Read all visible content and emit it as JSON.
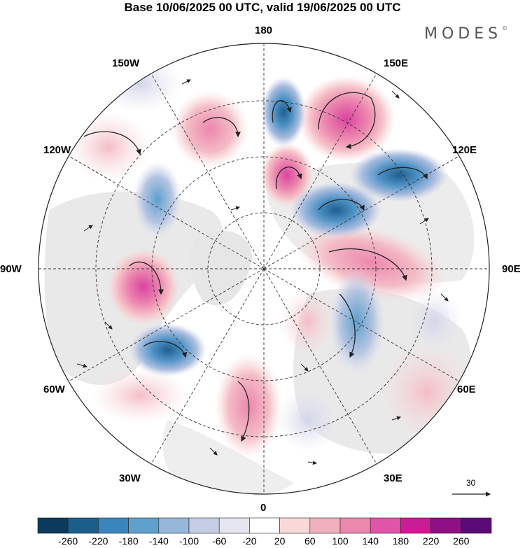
{
  "title": "Base 10/06/2025 00 UTC, valid 19/06/2025 00 UTC",
  "brand": "MODES",
  "brand_mark": "©",
  "longitude_labels": {
    "top": "180",
    "bottom": "0",
    "left": "90W",
    "right": "90E",
    "upper_left_1": "150W",
    "upper_left_2": "120W",
    "upper_right_1": "150E",
    "upper_right_2": "120E",
    "lower_left_1": "60W",
    "lower_left_2": "30W",
    "lower_right_1": "60E",
    "lower_right_2": "30E"
  },
  "vector_scale": "30",
  "colorbar": {
    "ticks": [
      "-260",
      "-220",
      "-180",
      "-140",
      "-100",
      "-60",
      "-20",
      "20",
      "60",
      "100",
      "140",
      "180",
      "220",
      "260"
    ],
    "colors": [
      "#0b3a5c",
      "#1a5f8c",
      "#3a85bd",
      "#5fa0cc",
      "#97b7da",
      "#c5cde6",
      "#e5e5f0",
      "#ffffff",
      "#f9d8d8",
      "#f1b0bd",
      "#ec87ae",
      "#e055a9",
      "#c91d98",
      "#8f0f86",
      "#5a0b78"
    ]
  }
}
